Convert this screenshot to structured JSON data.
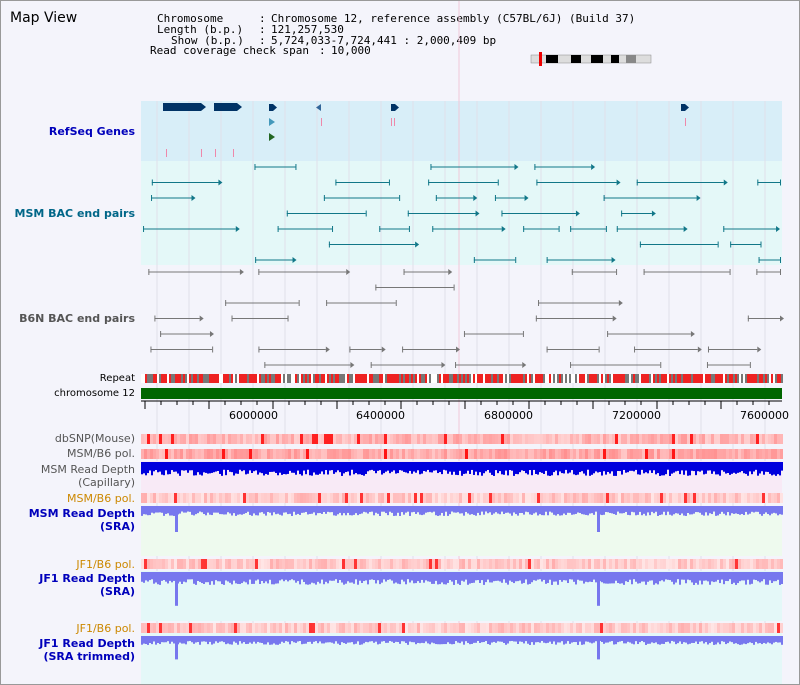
{
  "window": {
    "title": "Map View"
  },
  "info": {
    "chromosome_label": "Chromosome",
    "chromosome_value": "Chromosome 12, reference assembly (C57BL/6J) (Build 37)",
    "length_label": "Length (b.p.)",
    "length_value": "121,257,530",
    "show_label": "Show (b.p.)",
    "show_value": "5,724,033-7,724,441 : 2,000,409 bp",
    "coverage_label": "Read coverage check span",
    "coverage_value": "10,000"
  },
  "lanes": {
    "refseq": "RefSeq Genes",
    "msm_bac": "MSM BAC end pairs",
    "b6n_bac": "B6N BAC end pairs",
    "repeat": "Repeat",
    "chromosome": "chromosome 12"
  },
  "axis": {
    "ticks": [
      "6000000",
      "6400000",
      "6800000",
      "7200000",
      "7600000"
    ]
  },
  "tracks": {
    "dbsnp": "dbSNP(Mouse)",
    "msm_b6_pol_1": "MSM/B6 pol.",
    "msm_depth_cap_1": "MSM Read Depth",
    "msm_depth_cap_2": "(Capillary)",
    "msm_b6_pol_2": "MSM/B6 pol.",
    "msm_depth_sra_1": "MSM Read Depth",
    "msm_depth_sra_2": "(SRA)",
    "jf1_b6_pol_1": "JF1/B6 pol.",
    "jf1_depth_sra_1": "JF1 Read Depth",
    "jf1_depth_sra_2": "(SRA)",
    "jf1_b6_pol_2": "JF1/B6 pol.",
    "jf1_depth_trim_1": "JF1 Read Depth",
    "jf1_depth_trim_2": "(SRA trimmed)"
  },
  "colors": {
    "refseq_bg": "#d8eef8",
    "msm_bg": "#e4f8f8",
    "b6n_bg": "#f4f4fb",
    "gene": "#003366",
    "msm_pair": "#117788",
    "b6n_pair": "#777777",
    "chromosome_bar": "#006600",
    "pol": "#ee4444",
    "depth_dark": "#0000dd",
    "depth_light": "#7777ee",
    "label_blue": "#0000bb",
    "label_teal": "#006688",
    "label_gray": "#555555",
    "label_orange": "#cc8800"
  }
}
